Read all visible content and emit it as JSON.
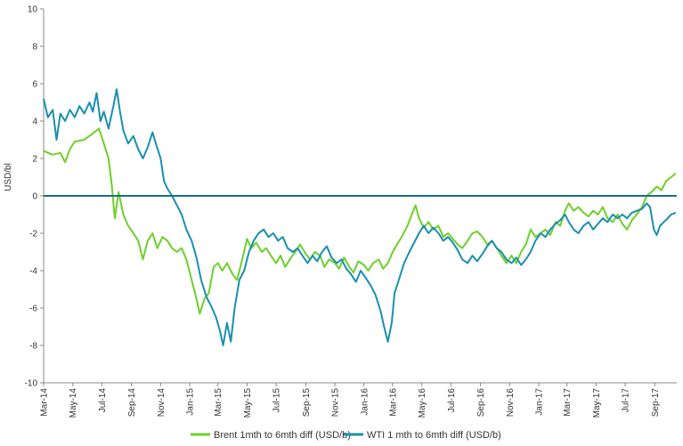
{
  "chart_data": {
    "type": "line",
    "ylabel": "USD/bl",
    "ylim": [
      -10,
      10
    ],
    "yticks": [
      10,
      8,
      6,
      4,
      2,
      0,
      -2,
      -4,
      -6,
      -8,
      -10
    ],
    "ytick_labels": [
      "10",
      "8",
      "6",
      "4",
      "2",
      "0",
      "-2",
      "-4",
      "-6",
      "-8",
      "-10"
    ],
    "xticks": [
      "Mar-14",
      "May-14",
      "Jul-14",
      "Sep-14",
      "Nov-14",
      "Jan-15",
      "Mar-15",
      "May-15",
      "Jul-15",
      "Sep-15",
      "Nov-15",
      "Jan-16",
      "Mar-16",
      "May-16",
      "Jul-16",
      "Sep-16",
      "Nov-16",
      "Jan-17",
      "Mar-17",
      "May-17",
      "Jul-17",
      "Sep-17"
    ],
    "xlim": [
      "2014-03-01",
      "2017-10-17"
    ],
    "grid": false,
    "legend_position": "bottom",
    "series": [
      {
        "name": "Brent 1mth to 6mth diff (USD/b)",
        "color": "#6fcf2a",
        "points": [
          [
            "2014-03-01",
            2.4
          ],
          [
            "2014-03-20",
            2.2
          ],
          [
            "2014-04-05",
            2.3
          ],
          [
            "2014-04-15",
            1.8
          ],
          [
            "2014-04-25",
            2.5
          ],
          [
            "2014-05-05",
            2.9
          ],
          [
            "2014-05-25",
            3.0
          ],
          [
            "2014-06-10",
            3.3
          ],
          [
            "2014-06-25",
            3.6
          ],
          [
            "2014-07-05",
            2.8
          ],
          [
            "2014-07-15",
            2.0
          ],
          [
            "2014-07-22",
            0.5
          ],
          [
            "2014-07-28",
            -1.2
          ],
          [
            "2014-08-05",
            0.2
          ],
          [
            "2014-08-15",
            -1.0
          ],
          [
            "2014-08-25",
            -1.6
          ],
          [
            "2014-09-05",
            -2.0
          ],
          [
            "2014-09-15",
            -2.4
          ],
          [
            "2014-09-25",
            -3.4
          ],
          [
            "2014-10-05",
            -2.4
          ],
          [
            "2014-10-15",
            -2.0
          ],
          [
            "2014-10-25",
            -2.8
          ],
          [
            "2014-11-05",
            -2.2
          ],
          [
            "2014-11-15",
            -2.4
          ],
          [
            "2014-11-25",
            -2.8
          ],
          [
            "2014-12-05",
            -3.0
          ],
          [
            "2014-12-15",
            -2.8
          ],
          [
            "2014-12-25",
            -3.4
          ],
          [
            "2015-01-05",
            -4.5
          ],
          [
            "2015-01-15",
            -5.5
          ],
          [
            "2015-01-22",
            -6.3
          ],
          [
            "2015-02-01",
            -5.5
          ],
          [
            "2015-02-10",
            -5.2
          ],
          [
            "2015-02-20",
            -3.8
          ],
          [
            "2015-03-01",
            -3.6
          ],
          [
            "2015-03-10",
            -4.0
          ],
          [
            "2015-03-20",
            -3.6
          ],
          [
            "2015-04-01",
            -4.2
          ],
          [
            "2015-04-10",
            -4.5
          ],
          [
            "2015-04-20",
            -3.5
          ],
          [
            "2015-05-01",
            -2.3
          ],
          [
            "2015-05-10",
            -2.8
          ],
          [
            "2015-05-20",
            -2.5
          ],
          [
            "2015-06-01",
            -3.0
          ],
          [
            "2015-06-10",
            -2.8
          ],
          [
            "2015-06-20",
            -3.2
          ],
          [
            "2015-07-01",
            -3.6
          ],
          [
            "2015-07-10",
            -3.2
          ],
          [
            "2015-07-20",
            -3.8
          ],
          [
            "2015-08-01",
            -3.3
          ],
          [
            "2015-08-10",
            -3.0
          ],
          [
            "2015-08-20",
            -2.6
          ],
          [
            "2015-09-01",
            -3.1
          ],
          [
            "2015-09-10",
            -3.4
          ],
          [
            "2015-09-20",
            -3.0
          ],
          [
            "2015-10-01",
            -3.2
          ],
          [
            "2015-10-10",
            -3.8
          ],
          [
            "2015-10-20",
            -3.4
          ],
          [
            "2015-11-01",
            -3.6
          ],
          [
            "2015-11-10",
            -3.9
          ],
          [
            "2015-11-20",
            -3.3
          ],
          [
            "2015-12-01",
            -3.8
          ],
          [
            "2015-12-10",
            -4.1
          ],
          [
            "2015-12-20",
            -3.5
          ],
          [
            "2016-01-01",
            -3.7
          ],
          [
            "2016-01-10",
            -4.0
          ],
          [
            "2016-01-20",
            -3.6
          ],
          [
            "2016-02-01",
            -3.4
          ],
          [
            "2016-02-10",
            -3.9
          ],
          [
            "2016-02-20",
            -3.6
          ],
          [
            "2016-03-01",
            -3.0
          ],
          [
            "2016-03-10",
            -2.6
          ],
          [
            "2016-03-20",
            -2.2
          ],
          [
            "2016-04-01",
            -1.6
          ],
          [
            "2016-04-10",
            -1.0
          ],
          [
            "2016-04-18",
            -0.5
          ],
          [
            "2016-04-25",
            -1.2
          ],
          [
            "2016-05-05",
            -1.7
          ],
          [
            "2016-05-15",
            -1.4
          ],
          [
            "2016-05-25",
            -1.8
          ],
          [
            "2016-06-05",
            -1.6
          ],
          [
            "2016-06-15",
            -2.2
          ],
          [
            "2016-06-25",
            -2.0
          ],
          [
            "2016-07-05",
            -2.3
          ],
          [
            "2016-07-15",
            -2.6
          ],
          [
            "2016-07-25",
            -2.8
          ],
          [
            "2016-08-05",
            -2.4
          ],
          [
            "2016-08-15",
            -2.0
          ],
          [
            "2016-08-25",
            -1.9
          ],
          [
            "2016-09-05",
            -2.2
          ],
          [
            "2016-09-15",
            -2.6
          ],
          [
            "2016-09-25",
            -2.4
          ],
          [
            "2016-10-05",
            -2.8
          ],
          [
            "2016-10-15",
            -3.2
          ],
          [
            "2016-10-25",
            -3.6
          ],
          [
            "2016-11-05",
            -3.2
          ],
          [
            "2016-11-15",
            -3.6
          ],
          [
            "2016-11-25",
            -3.0
          ],
          [
            "2016-12-05",
            -2.6
          ],
          [
            "2016-12-15",
            -1.8
          ],
          [
            "2016-12-25",
            -2.2
          ],
          [
            "2017-01-05",
            -2.0
          ],
          [
            "2017-01-15",
            -1.8
          ],
          [
            "2017-01-25",
            -2.1
          ],
          [
            "2017-02-05",
            -1.4
          ],
          [
            "2017-02-15",
            -1.6
          ],
          [
            "2017-02-25",
            -0.8
          ],
          [
            "2017-03-05",
            -0.4
          ],
          [
            "2017-03-15",
            -0.8
          ],
          [
            "2017-03-25",
            -0.6
          ],
          [
            "2017-04-05",
            -0.9
          ],
          [
            "2017-04-15",
            -1.1
          ],
          [
            "2017-04-25",
            -0.8
          ],
          [
            "2017-05-05",
            -1.0
          ],
          [
            "2017-05-15",
            -0.6
          ],
          [
            "2017-05-25",
            -1.2
          ],
          [
            "2017-06-05",
            -1.4
          ],
          [
            "2017-06-15",
            -1.0
          ],
          [
            "2017-06-25",
            -1.5
          ],
          [
            "2017-07-05",
            -1.8
          ],
          [
            "2017-07-15",
            -1.3
          ],
          [
            "2017-07-25",
            -1.0
          ],
          [
            "2017-08-05",
            -0.6
          ],
          [
            "2017-08-15",
            0.0
          ],
          [
            "2017-08-25",
            0.2
          ],
          [
            "2017-09-05",
            0.5
          ],
          [
            "2017-09-15",
            0.3
          ],
          [
            "2017-09-25",
            0.8
          ],
          [
            "2017-10-05",
            1.0
          ],
          [
            "2017-10-15",
            1.2
          ]
        ]
      },
      {
        "name": "WTI 1 mth to 6mth diff (USD/b)",
        "color": "#1a8fb0",
        "points": [
          [
            "2014-03-01",
            5.2
          ],
          [
            "2014-03-10",
            4.2
          ],
          [
            "2014-03-20",
            4.6
          ],
          [
            "2014-03-28",
            3.0
          ],
          [
            "2014-04-05",
            4.4
          ],
          [
            "2014-04-15",
            4.0
          ],
          [
            "2014-04-25",
            4.6
          ],
          [
            "2014-05-05",
            4.2
          ],
          [
            "2014-05-15",
            4.8
          ],
          [
            "2014-05-25",
            4.4
          ],
          [
            "2014-06-05",
            5.0
          ],
          [
            "2014-06-12",
            4.5
          ],
          [
            "2014-06-20",
            5.5
          ],
          [
            "2014-06-28",
            4.0
          ],
          [
            "2014-07-05",
            4.5
          ],
          [
            "2014-07-15",
            3.6
          ],
          [
            "2014-07-25",
            4.8
          ],
          [
            "2014-08-01",
            5.7
          ],
          [
            "2014-08-08",
            4.5
          ],
          [
            "2014-08-15",
            3.5
          ],
          [
            "2014-08-25",
            2.8
          ],
          [
            "2014-09-05",
            3.2
          ],
          [
            "2014-09-15",
            2.5
          ],
          [
            "2014-09-25",
            2.0
          ],
          [
            "2014-10-05",
            2.6
          ],
          [
            "2014-10-15",
            3.4
          ],
          [
            "2014-10-22",
            2.8
          ],
          [
            "2014-11-01",
            2.0
          ],
          [
            "2014-11-08",
            0.8
          ],
          [
            "2014-11-15",
            0.4
          ],
          [
            "2014-11-25",
            0.0
          ],
          [
            "2014-12-05",
            -0.5
          ],
          [
            "2014-12-15",
            -1.0
          ],
          [
            "2014-12-25",
            -1.8
          ],
          [
            "2015-01-05",
            -2.4
          ],
          [
            "2015-01-15",
            -3.3
          ],
          [
            "2015-01-25",
            -4.5
          ],
          [
            "2015-02-05",
            -5.4
          ],
          [
            "2015-02-15",
            -5.9
          ],
          [
            "2015-02-25",
            -6.5
          ],
          [
            "2015-03-05",
            -7.2
          ],
          [
            "2015-03-12",
            -8.0
          ],
          [
            "2015-03-20",
            -6.8
          ],
          [
            "2015-03-28",
            -7.8
          ],
          [
            "2015-04-05",
            -6.0
          ],
          [
            "2015-04-15",
            -4.5
          ],
          [
            "2015-04-25",
            -4.0
          ],
          [
            "2015-05-05",
            -3.0
          ],
          [
            "2015-05-15",
            -2.4
          ],
          [
            "2015-05-25",
            -2.0
          ],
          [
            "2015-06-05",
            -1.8
          ],
          [
            "2015-06-15",
            -2.2
          ],
          [
            "2015-06-25",
            -2.0
          ],
          [
            "2015-07-05",
            -2.4
          ],
          [
            "2015-07-15",
            -2.2
          ],
          [
            "2015-07-25",
            -2.8
          ],
          [
            "2015-08-05",
            -3.0
          ],
          [
            "2015-08-15",
            -2.8
          ],
          [
            "2015-08-25",
            -3.2
          ],
          [
            "2015-09-05",
            -3.6
          ],
          [
            "2015-09-15",
            -3.2
          ],
          [
            "2015-09-25",
            -3.5
          ],
          [
            "2015-10-05",
            -3.0
          ],
          [
            "2015-10-15",
            -2.7
          ],
          [
            "2015-10-25",
            -3.3
          ],
          [
            "2015-11-05",
            -3.6
          ],
          [
            "2015-11-15",
            -3.4
          ],
          [
            "2015-11-25",
            -3.9
          ],
          [
            "2015-12-05",
            -4.2
          ],
          [
            "2015-12-15",
            -4.6
          ],
          [
            "2015-12-25",
            -4.0
          ],
          [
            "2016-01-05",
            -4.4
          ],
          [
            "2016-01-15",
            -4.8
          ],
          [
            "2016-01-25",
            -5.3
          ],
          [
            "2016-02-05",
            -6.2
          ],
          [
            "2016-02-12",
            -7.0
          ],
          [
            "2016-02-20",
            -7.8
          ],
          [
            "2016-02-28",
            -6.8
          ],
          [
            "2016-03-05",
            -5.2
          ],
          [
            "2016-03-15",
            -4.4
          ],
          [
            "2016-03-25",
            -3.6
          ],
          [
            "2016-04-05",
            -3.0
          ],
          [
            "2016-04-15",
            -2.5
          ],
          [
            "2016-04-25",
            -2.0
          ],
          [
            "2016-05-05",
            -1.6
          ],
          [
            "2016-05-15",
            -2.0
          ],
          [
            "2016-05-25",
            -1.7
          ],
          [
            "2016-06-05",
            -2.0
          ],
          [
            "2016-06-15",
            -2.4
          ],
          [
            "2016-06-25",
            -2.2
          ],
          [
            "2016-07-05",
            -2.5
          ],
          [
            "2016-07-15",
            -2.9
          ],
          [
            "2016-07-25",
            -3.4
          ],
          [
            "2016-08-05",
            -3.6
          ],
          [
            "2016-08-15",
            -3.2
          ],
          [
            "2016-08-25",
            -3.5
          ],
          [
            "2016-09-05",
            -3.1
          ],
          [
            "2016-09-15",
            -2.7
          ],
          [
            "2016-09-25",
            -2.4
          ],
          [
            "2016-10-05",
            -2.8
          ],
          [
            "2016-10-15",
            -3.0
          ],
          [
            "2016-10-25",
            -3.4
          ],
          [
            "2016-11-05",
            -3.6
          ],
          [
            "2016-11-15",
            -3.3
          ],
          [
            "2016-11-25",
            -3.7
          ],
          [
            "2016-12-05",
            -3.4
          ],
          [
            "2016-12-15",
            -3.0
          ],
          [
            "2016-12-25",
            -2.4
          ],
          [
            "2017-01-05",
            -2.0
          ],
          [
            "2017-01-15",
            -2.2
          ],
          [
            "2017-01-25",
            -1.8
          ],
          [
            "2017-02-05",
            -1.5
          ],
          [
            "2017-02-15",
            -1.3
          ],
          [
            "2017-02-25",
            -1.0
          ],
          [
            "2017-03-05",
            -1.4
          ],
          [
            "2017-03-15",
            -1.8
          ],
          [
            "2017-03-25",
            -2.0
          ],
          [
            "2017-04-05",
            -1.6
          ],
          [
            "2017-04-15",
            -1.4
          ],
          [
            "2017-04-25",
            -1.8
          ],
          [
            "2017-05-05",
            -1.5
          ],
          [
            "2017-05-15",
            -1.2
          ],
          [
            "2017-05-25",
            -1.4
          ],
          [
            "2017-06-05",
            -1.0
          ],
          [
            "2017-06-15",
            -1.2
          ],
          [
            "2017-06-25",
            -1.0
          ],
          [
            "2017-07-05",
            -1.2
          ],
          [
            "2017-07-15",
            -0.9
          ],
          [
            "2017-07-25",
            -0.8
          ],
          [
            "2017-08-05",
            -0.7
          ],
          [
            "2017-08-15",
            -0.4
          ],
          [
            "2017-08-22",
            -0.6
          ],
          [
            "2017-08-30",
            -1.8
          ],
          [
            "2017-09-05",
            -2.1
          ],
          [
            "2017-09-12",
            -1.6
          ],
          [
            "2017-09-20",
            -1.4
          ],
          [
            "2017-09-28",
            -1.2
          ],
          [
            "2017-10-05",
            -1.0
          ],
          [
            "2017-10-15",
            -0.9
          ]
        ]
      }
    ]
  }
}
